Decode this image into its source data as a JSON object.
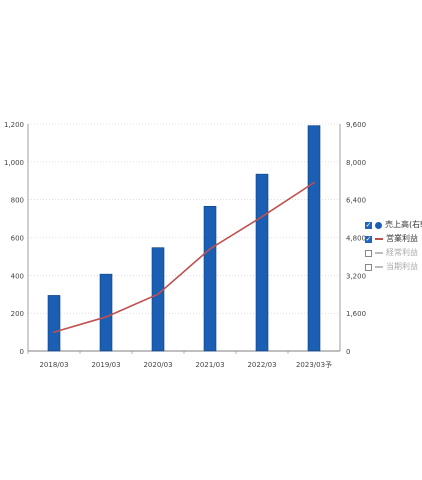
{
  "chart_data": {
    "type": "bar",
    "categories": [
      "2018/03",
      "2019/03",
      "2020/03",
      "2021/03",
      "2022/03",
      "2023/03予"
    ],
    "series": [
      {
        "name": "売上高(右軸)",
        "type": "bar",
        "axis": "right",
        "color": "#1a5fb4",
        "values": [
          2350,
          3250,
          4370,
          6120,
          7480,
          9530
        ]
      },
      {
        "name": "営業利益",
        "type": "line",
        "axis": "left",
        "color": "#c0504d",
        "values": [
          100,
          180,
          300,
          540,
          710,
          890
        ]
      }
    ],
    "y_left": {
      "ylim": [
        0,
        1200
      ],
      "ticks": [
        "0",
        "200",
        "400",
        "600",
        "800",
        "1,000",
        "1,200"
      ]
    },
    "y_right": {
      "ylim": [
        0,
        9600
      ],
      "ticks": [
        "0",
        "1,600",
        "3,200",
        "4,800",
        "6,400",
        "8,000",
        "9,600"
      ]
    },
    "grid": "horizontal dotted",
    "legend_position": "right"
  },
  "legend": [
    {
      "label": "売上高(右軸)",
      "checked": true,
      "symbol": "dot",
      "color": "#1a5fb4"
    },
    {
      "label": "営業利益",
      "checked": true,
      "symbol": "line",
      "color": "#c0504d"
    },
    {
      "label": "経常利益",
      "checked": false,
      "symbol": "line",
      "color": "#bbbbbb"
    },
    {
      "label": "当期利益",
      "checked": false,
      "symbol": "line",
      "color": "#bbbbbb"
    }
  ]
}
